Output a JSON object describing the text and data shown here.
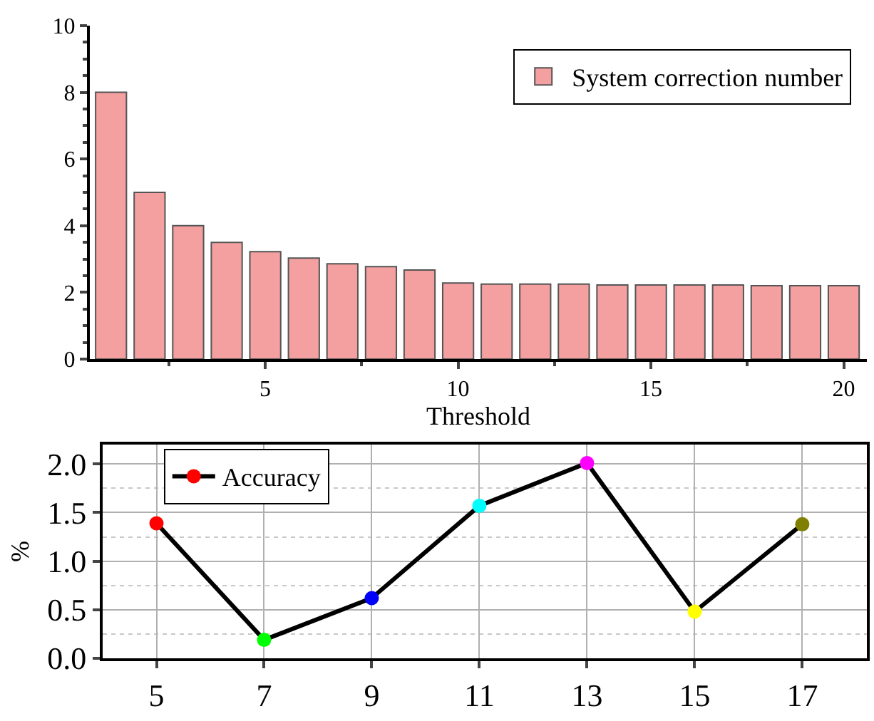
{
  "chart_data": [
    {
      "type": "bar",
      "xlabel": "Threshold",
      "x": [
        1,
        2,
        3,
        4,
        5,
        6,
        7,
        8,
        9,
        10,
        11,
        12,
        13,
        14,
        15,
        16,
        17,
        18,
        19,
        20
      ],
      "series": [
        {
          "name": "System correction number",
          "color": "#f4a0a0",
          "values": [
            8,
            5,
            4,
            3.5,
            3.22,
            3.03,
            2.86,
            2.77,
            2.67,
            2.28,
            2.25,
            2.25,
            2.25,
            2.22,
            2.22,
            2.22,
            2.22,
            2.2,
            2.2,
            2.2
          ]
        }
      ],
      "xlim": [
        0.45,
        20.6
      ],
      "xticks": [
        5,
        10,
        15,
        20
      ],
      "ylim": [
        0,
        10
      ],
      "yticks": [
        0,
        2,
        4,
        6,
        8,
        10
      ],
      "legend": "top right",
      "grid": false
    },
    {
      "type": "line",
      "ylabel": "%",
      "x": [
        5,
        7,
        9,
        11,
        13,
        15,
        17
      ],
      "series": [
        {
          "name": "Accuracy",
          "color": "#000000",
          "colors": [
            "#ff0000",
            "#00ff00",
            "#0000ff",
            "#00ffff",
            "#ff00ff",
            "#ffff00",
            "#808000"
          ],
          "values": [
            1.39,
            0.19,
            0.62,
            1.57,
            2.01,
            0.48,
            1.38
          ]
        }
      ],
      "xlim": [
        4,
        18.2
      ],
      "xticks": [
        5,
        7,
        9,
        11,
        13,
        15,
        17
      ],
      "ylim": [
        0,
        2.2
      ],
      "yticks": [
        {
          "value": 0,
          "label": "0.0"
        },
        {
          "value": 0.5,
          "label": "0.5"
        },
        {
          "value": 1,
          "label": "1.0"
        },
        {
          "value": 1.5,
          "label": "1.5"
        },
        {
          "value": 2,
          "label": "2.0"
        }
      ],
      "legend": "top left",
      "grid": true,
      "marker": "circle",
      "line_style": "solid"
    }
  ]
}
